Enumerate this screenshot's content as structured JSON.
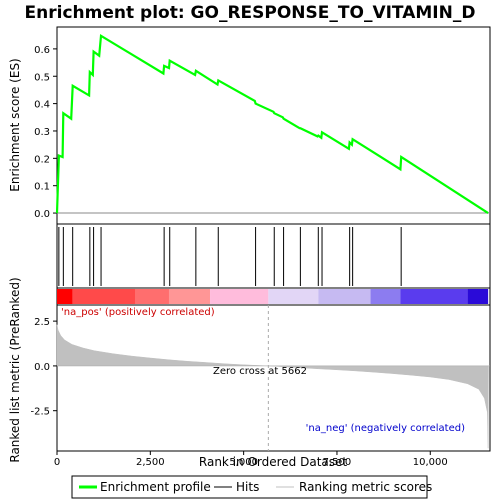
{
  "title": "Enrichment plot: GO_RESPONSE_TO_VITAMIN_D",
  "legend": {
    "items": [
      {
        "label": "Enrichment profile",
        "color": "#00ff00",
        "kind": "thick-line"
      },
      {
        "label": "Hits",
        "color": "#000000",
        "kind": "thin-line"
      },
      {
        "label": "Ranking metric scores",
        "color": "#c0c0c0",
        "kind": "thin-line"
      }
    ]
  },
  "chart_data": [
    {
      "type": "line",
      "name": "enrichment-profile",
      "ylabel": "Enrichment score (ES)",
      "xlim": [
        0,
        11600
      ],
      "ylim": [
        -0.04,
        0.68
      ],
      "yticks": [
        0.0,
        0.1,
        0.2,
        0.3,
        0.4,
        0.5,
        0.6
      ],
      "ytick_labels": [
        "0.0",
        "0.1",
        "0.2",
        "0.3",
        "0.4",
        "0.5",
        "0.6"
      ],
      "grid": false,
      "color": "#00ff00",
      "points": [
        [
          0,
          0.0
        ],
        [
          50,
          0.21
        ],
        [
          150,
          0.205
        ],
        [
          170,
          0.365
        ],
        [
          380,
          0.345
        ],
        [
          420,
          0.465
        ],
        [
          860,
          0.43
        ],
        [
          880,
          0.515
        ],
        [
          960,
          0.505
        ],
        [
          980,
          0.59
        ],
        [
          1130,
          0.575
        ],
        [
          1180,
          0.648
        ],
        [
          2850,
          0.51
        ],
        [
          2870,
          0.538
        ],
        [
          3000,
          0.53
        ],
        [
          3020,
          0.557
        ],
        [
          3700,
          0.505
        ],
        [
          3720,
          0.52
        ],
        [
          4300,
          0.47
        ],
        [
          4320,
          0.485
        ],
        [
          5300,
          0.41
        ],
        [
          5320,
          0.4
        ],
        [
          5800,
          0.37
        ],
        [
          5820,
          0.365
        ],
        [
          6050,
          0.35
        ],
        [
          6070,
          0.345
        ],
        [
          6500,
          0.31
        ],
        [
          6520,
          0.31
        ],
        [
          6980,
          0.28
        ],
        [
          7000,
          0.283
        ],
        [
          7080,
          0.275
        ],
        [
          7100,
          0.295
        ],
        [
          7820,
          0.235
        ],
        [
          7840,
          0.258
        ],
        [
          7900,
          0.25
        ],
        [
          7920,
          0.27
        ],
        [
          9200,
          0.16
        ],
        [
          9220,
          0.205
        ],
        [
          11550,
          0.0
        ]
      ]
    },
    {
      "type": "hits",
      "name": "hits",
      "xlim": [
        0,
        11600
      ],
      "hit_ranks": [
        50,
        170,
        420,
        880,
        980,
        1180,
        2870,
        3020,
        3720,
        4320,
        5320,
        5820,
        6070,
        6520,
        7000,
        7100,
        7840,
        7920,
        9220
      ]
    },
    {
      "type": "heatmap",
      "name": "rank-color-bar",
      "xlim": [
        0,
        11600
      ],
      "segments": [
        {
          "from": 0,
          "to": 420,
          "color": "#ff0000"
        },
        {
          "from": 420,
          "to": 2100,
          "color": "#ff4a4a"
        },
        {
          "from": 2100,
          "to": 3000,
          "color": "#ff6e6e"
        },
        {
          "from": 3000,
          "to": 4100,
          "color": "#ff9696"
        },
        {
          "from": 4100,
          "to": 5662,
          "color": "#ffbcdc"
        },
        {
          "from": 5662,
          "to": 7000,
          "color": "#e2d6f6"
        },
        {
          "from": 7000,
          "to": 8400,
          "color": "#c6baf2"
        },
        {
          "from": 8400,
          "to": 9200,
          "color": "#8c7cf0"
        },
        {
          "from": 9200,
          "to": 11000,
          "color": "#5a3cee"
        },
        {
          "from": 11000,
          "to": 11550,
          "color": "#2a0ad8"
        }
      ]
    },
    {
      "type": "area",
      "name": "ranking-metric",
      "xlabel": "Rank in Ordered Dataset",
      "ylabel": "Ranked list metric (PreRanked)",
      "xlim": [
        0,
        11600
      ],
      "ylim": [
        -4.75,
        3.4
      ],
      "xticks": [
        0,
        2500,
        5000,
        7500,
        10000
      ],
      "xtick_labels": [
        "0",
        "2,500",
        "5,000",
        "7,500",
        "10,000"
      ],
      "yticks": [
        -2.5,
        0.0,
        2.5
      ],
      "ytick_labels": [
        "-2.5",
        "0.0",
        "2.5"
      ],
      "color": "#c0c0c0",
      "points": [
        [
          0,
          2.3
        ],
        [
          30,
          2.0
        ],
        [
          100,
          1.7
        ],
        [
          200,
          1.45
        ],
        [
          400,
          1.2
        ],
        [
          700,
          1.0
        ],
        [
          1000,
          0.85
        ],
        [
          1500,
          0.68
        ],
        [
          2000,
          0.55
        ],
        [
          2500,
          0.44
        ],
        [
          3000,
          0.34
        ],
        [
          3500,
          0.26
        ],
        [
          4000,
          0.19
        ],
        [
          4500,
          0.12
        ],
        [
          5000,
          0.06
        ],
        [
          5662,
          0.0
        ],
        [
          6000,
          -0.04
        ],
        [
          6500,
          -0.1
        ],
        [
          7000,
          -0.16
        ],
        [
          7500,
          -0.22
        ],
        [
          8000,
          -0.28
        ],
        [
          8500,
          -0.35
        ],
        [
          9000,
          -0.43
        ],
        [
          9500,
          -0.52
        ],
        [
          10000,
          -0.62
        ],
        [
          10500,
          -0.76
        ],
        [
          11000,
          -1.0
        ],
        [
          11300,
          -1.3
        ],
        [
          11450,
          -1.8
        ],
        [
          11530,
          -2.6
        ],
        [
          11550,
          -4.6
        ],
        [
          11560,
          0.0
        ]
      ],
      "zero_cross": 5662,
      "zero_cross_label": "Zero cross at 5662",
      "pos_label": "'na_pos' (positively correlated)",
      "neg_label": "'na_neg' (negatively correlated)"
    }
  ]
}
